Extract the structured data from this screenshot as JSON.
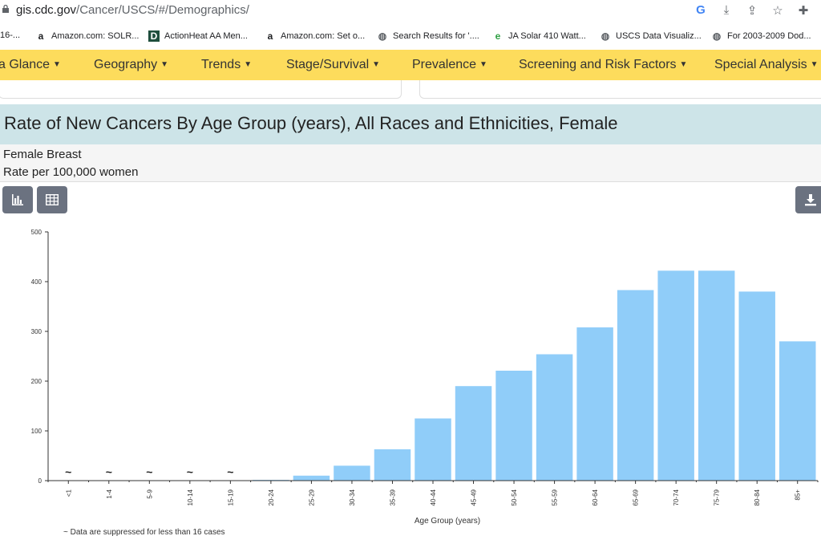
{
  "browser": {
    "url_host": "gis.cdc.gov",
    "url_path": "/Cancer/USCS/#/Demographics/",
    "bookmarks": [
      {
        "icon": "text-fragment",
        "label": "16-..."
      },
      {
        "icon": "amazon-icon",
        "label": "Amazon.com: SOLR..."
      },
      {
        "icon": "d-icon",
        "label": "ActionHeat AA Men..."
      },
      {
        "icon": "amazon-icon",
        "label": "Amazon.com: Set o..."
      },
      {
        "icon": "globe-icon",
        "label": "Search Results for '...."
      },
      {
        "icon": "e-icon",
        "label": "JA Solar 410 Watt..."
      },
      {
        "icon": "globe-icon",
        "label": "USCS Data Visualiz..."
      },
      {
        "icon": "globe-icon",
        "label": "For 2003-2009 Dod..."
      }
    ]
  },
  "nav": {
    "items": [
      {
        "label": "a Glance"
      },
      {
        "label": "Geography"
      },
      {
        "label": "Trends"
      },
      {
        "label": "Stage/Survival"
      },
      {
        "label": "Prevalence"
      },
      {
        "label": "Screening and Risk Factors"
      },
      {
        "label": "Special Analysis"
      }
    ]
  },
  "header": {
    "title": "Rate of New Cancers By Age Group (years), All Races and Ethnicities, Female",
    "subtitle1": "Female Breast",
    "subtitle2": "Rate per 100,000 women"
  },
  "footnote": "~ Data are suppressed for less than 16 cases",
  "colors": {
    "bar": "#90cdf9",
    "nav": "#fddc5c",
    "title_bar": "#cde4e8",
    "button": "#6b7280"
  },
  "chart_data": {
    "type": "bar",
    "title": "Rate of New Cancers By Age Group (years), All Races and Ethnicities, Female",
    "xlabel": "Age Group (years)",
    "ylabel": "",
    "ylim": [
      0,
      500
    ],
    "yticks": [
      0,
      100,
      200,
      300,
      400,
      500
    ],
    "categories": [
      "<1",
      "1-4",
      "5-9",
      "10-14",
      "15-19",
      "20-24",
      "25-29",
      "30-34",
      "35-39",
      "40-44",
      "45-49",
      "50-54",
      "55-59",
      "60-64",
      "65-69",
      "70-74",
      "75-79",
      "80-84",
      "85+"
    ],
    "values": [
      null,
      null,
      null,
      null,
      null,
      1.5,
      10,
      30,
      63,
      125,
      190,
      221,
      254,
      308,
      383,
      422,
      422,
      380,
      280
    ],
    "suppressed_marker": "~"
  }
}
